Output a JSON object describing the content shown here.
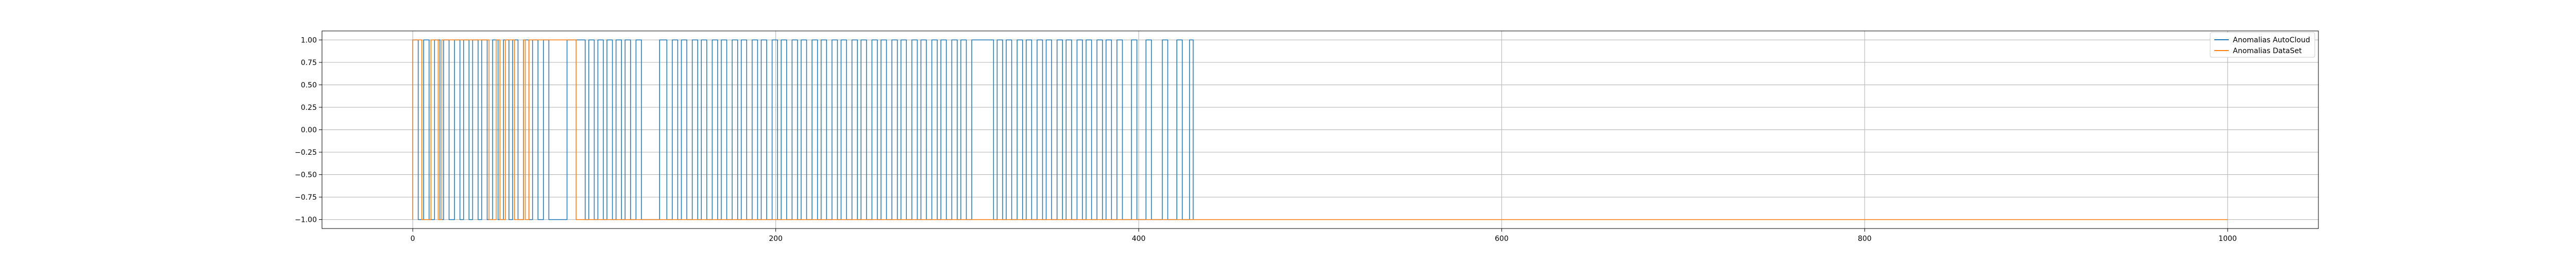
{
  "colors": {
    "background": "#ffffff",
    "axes": "#000000",
    "grid": "#b0b0b0",
    "series_autocloud": "#1f77b4",
    "series_dataset": "#ff7f0e"
  },
  "chart_data": {
    "type": "line",
    "title": "",
    "xlabel": "",
    "ylabel": "",
    "xlim": [
      -50,
      1050
    ],
    "ylim": [
      -1.1,
      1.1
    ],
    "grid": true,
    "legend_position": "upper right",
    "xticks": [
      0,
      200,
      400,
      600,
      800,
      1000
    ],
    "xtick_labels": [
      "0",
      "200",
      "400",
      "600",
      "800",
      "1000"
    ],
    "yticks": [
      1.0,
      0.75,
      0.5,
      0.25,
      0.0,
      -0.25,
      -0.5,
      -0.75,
      -1.0
    ],
    "ytick_labels": [
      "1.00",
      "0.75",
      "0.50",
      "0.25",
      "0.00",
      "−0.25",
      "−0.50",
      "−0.75",
      "−1.00"
    ],
    "series": [
      {
        "name": "Anomalias AutoCloud",
        "color": "#1f77b4",
        "note_values": "binary step signal: +1 intervals, -1 elsewhere; ends at x=430",
        "x_end": 430,
        "high_intervals": [
          [
            0,
            3
          ],
          [
            6,
            9
          ],
          [
            12,
            15
          ],
          [
            17,
            20
          ],
          [
            23,
            26
          ],
          [
            28,
            31
          ],
          [
            33,
            36
          ],
          [
            38,
            41
          ],
          [
            44,
            47
          ],
          [
            50,
            53
          ],
          [
            55,
            58
          ],
          [
            61,
            64
          ],
          [
            66,
            69
          ],
          [
            72,
            75
          ],
          [
            85,
            95
          ],
          [
            97,
            100
          ],
          [
            102,
            105
          ],
          [
            107,
            110
          ],
          [
            112,
            115
          ],
          [
            117,
            120
          ],
          [
            123,
            126
          ],
          [
            136,
            140
          ],
          [
            143,
            146
          ],
          [
            148,
            151
          ],
          [
            154,
            157
          ],
          [
            159,
            162
          ],
          [
            165,
            168
          ],
          [
            170,
            173
          ],
          [
            176,
            179
          ],
          [
            181,
            184
          ],
          [
            187,
            190
          ],
          [
            192,
            195
          ],
          [
            198,
            201
          ],
          [
            203,
            206
          ],
          [
            209,
            212
          ],
          [
            214,
            217
          ],
          [
            220,
            223
          ],
          [
            225,
            228
          ],
          [
            231,
            234
          ],
          [
            236,
            239
          ],
          [
            242,
            245
          ],
          [
            247,
            250
          ],
          [
            253,
            256
          ],
          [
            258,
            261
          ],
          [
            264,
            267
          ],
          [
            269,
            272
          ],
          [
            275,
            278
          ],
          [
            280,
            283
          ],
          [
            286,
            289
          ],
          [
            291,
            294
          ],
          [
            297,
            300
          ],
          [
            302,
            305
          ],
          [
            308,
            320
          ],
          [
            322,
            325
          ],
          [
            327,
            330
          ],
          [
            333,
            336
          ],
          [
            338,
            341
          ],
          [
            344,
            347
          ],
          [
            349,
            352
          ],
          [
            355,
            358
          ],
          [
            360,
            363
          ],
          [
            366,
            369
          ],
          [
            371,
            374
          ],
          [
            377,
            380
          ],
          [
            382,
            385
          ],
          [
            388,
            391
          ],
          [
            396,
            399
          ],
          [
            404,
            407
          ],
          [
            413,
            416
          ],
          [
            421,
            424
          ],
          [
            428,
            430
          ]
        ]
      },
      {
        "name": "Anomalias DataSet",
        "color": "#ff7f0e",
        "note_values": "binary step signal: +1 intervals, -1 elsewhere; ends at x=1000",
        "x_end": 1000,
        "high_intervals": [
          [
            0,
            5
          ],
          [
            10,
            14
          ],
          [
            16,
            42
          ],
          [
            46,
            48
          ],
          [
            51,
            56
          ],
          [
            61,
            62
          ],
          [
            64,
            90
          ]
        ]
      }
    ]
  }
}
